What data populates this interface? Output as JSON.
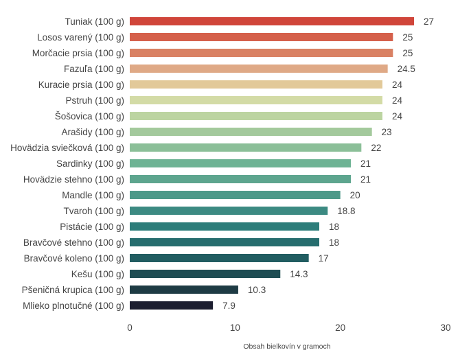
{
  "chart_data": {
    "type": "bar",
    "orientation": "horizontal",
    "categories": [
      "Tuniak (100 g)",
      "Losos varený (100 g)",
      "Morčacie prsia (100 g)",
      "Fazuľa (100 g)",
      "Kuracie prsia (100 g)",
      "Pstruh (100 g)",
      "Šošovica (100 g)",
      "Arašidy (100 g)",
      "Hovädzia sviečková (100 g)",
      "Sardinky (100 g)",
      "Hovädzie stehno (100 g)",
      "Mandle (100 g)",
      "Tvaroh (100 g)",
      "Pistácie (100 g)",
      "Bravčové stehno (100 g)",
      "Bravčové koleno (100 g)",
      "Kešu (100 g)",
      "Pšeničná krupica (100 g)",
      "Mlieko plnotučné (100 g)"
    ],
    "values": [
      27,
      25,
      25,
      24.5,
      24,
      24,
      24,
      23,
      22,
      21,
      21,
      20,
      18.8,
      18,
      18,
      17,
      14.3,
      10.3,
      7.9
    ],
    "value_labels": [
      "27",
      "25",
      "25",
      "24.5",
      "24",
      "24",
      "24",
      "23",
      "22",
      "21",
      "21",
      "20",
      "18.8",
      "18",
      "18",
      "17",
      "14.3",
      "10.3",
      "7.9"
    ],
    "colors": [
      "#d0453a",
      "#d5604b",
      "#d98163",
      "#dfa986",
      "#e2c999",
      "#d3dba6",
      "#bcd4a1",
      "#a3c99c",
      "#8bbf98",
      "#6eb394",
      "#5da58e",
      "#4d9989",
      "#3c8a82",
      "#2d7d7a",
      "#266d6e",
      "#215d61",
      "#1e4d53",
      "#1e3b44",
      "#1c1e30"
    ],
    "x_ticks": [
      "0",
      "10",
      "20",
      "30"
    ],
    "xlim": [
      0,
      30
    ],
    "xlabel": "Obsah bielkovín v gramoch",
    "title": "",
    "grid": false,
    "legend": "none"
  }
}
